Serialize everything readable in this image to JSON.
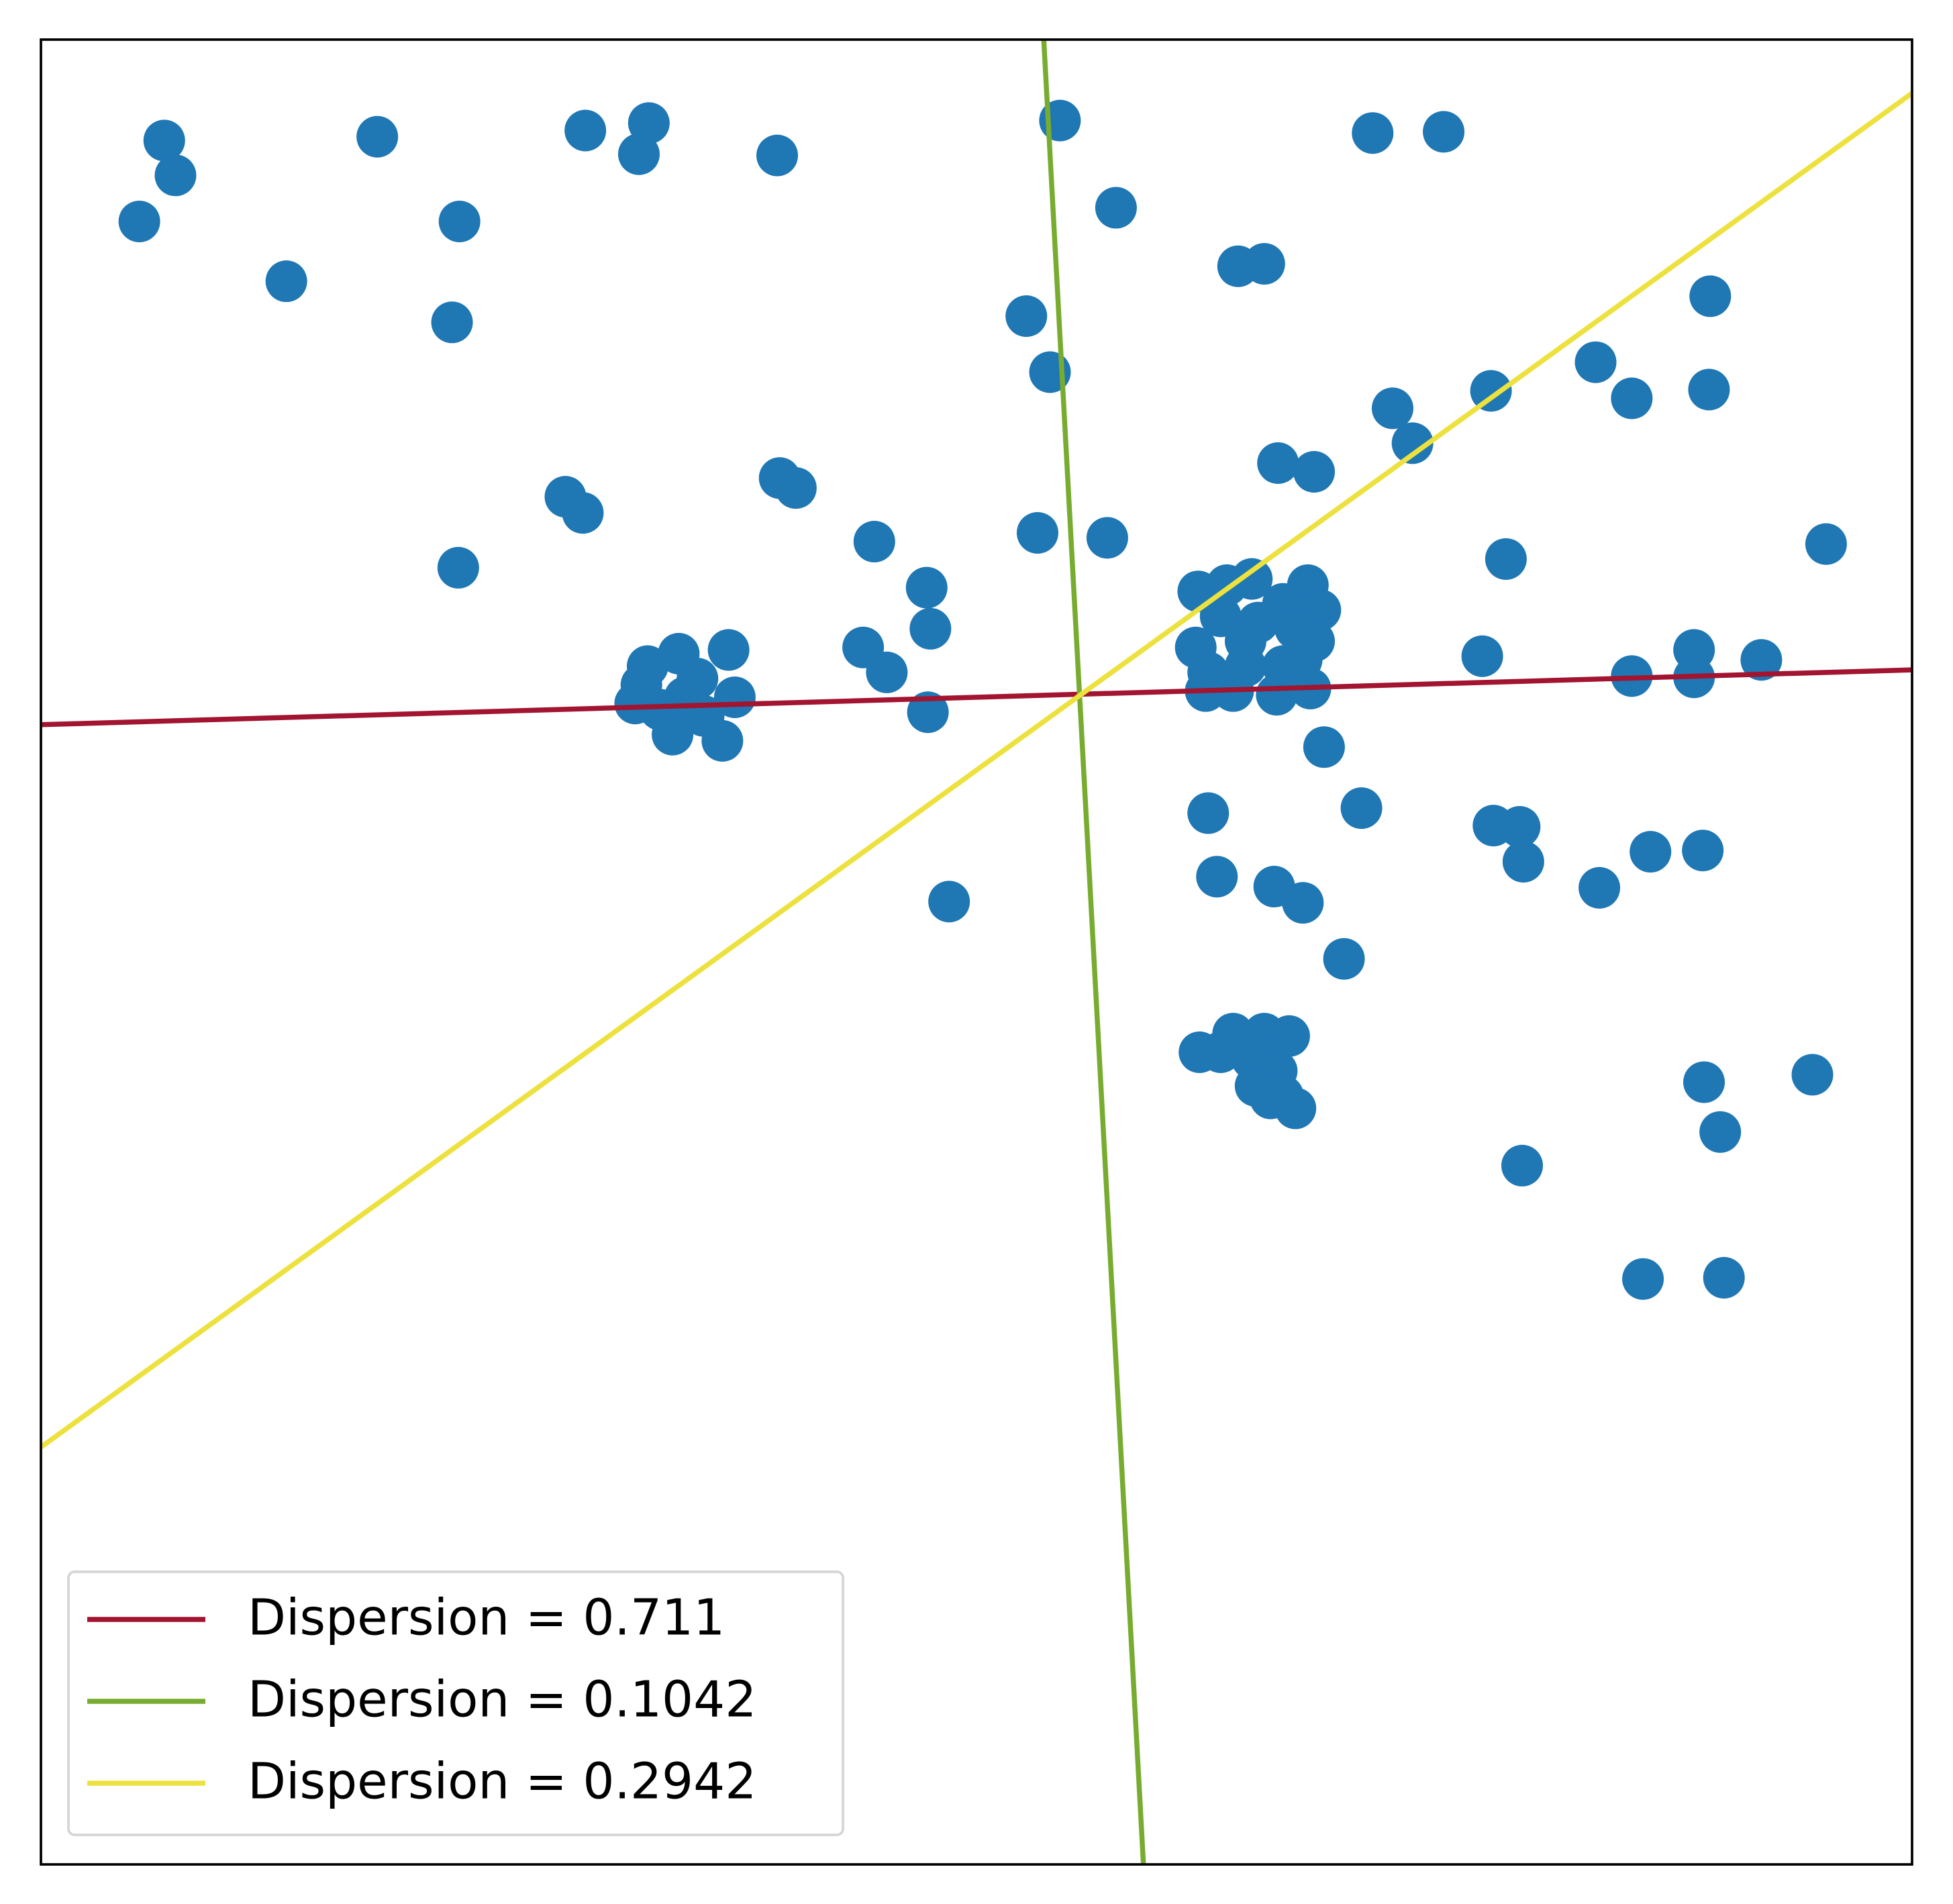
{
  "chart_data": {
    "type": "scatter",
    "xlim": [
      0,
      1502
    ],
    "ylim": [
      0,
      1465
    ],
    "legend": "lower left",
    "series": [
      {
        "type": "scatter",
        "color": "#1f77b4",
        "x": [
          99,
          108,
          79,
          270,
          197,
          336,
          330,
          437,
          488,
          480,
          591,
          818,
          863,
          1069,
          1126,
          961,
          982,
          791,
          810,
          1340,
          1248,
          1277,
          1339,
          1164,
          1085,
          1101,
          993,
          1022,
          593,
          606,
          421,
          435,
          335,
          669,
          800,
          856,
          1433,
          1176,
          711,
          714,
          660,
          679,
          712,
          1157,
          1327,
          1381,
          1277,
          1327,
          1030,
          937,
          1060,
          1166,
          1187,
          1190,
          1292,
          1334,
          1251,
          944,
          990,
          1013,
          729,
          1046,
          1335,
          1422,
          1348,
          1189,
          1286,
          1351,
          487,
          512,
          552,
          482,
          527,
          557,
          497,
          532,
          547,
          507,
          477,
          517,
          929,
          952,
          972,
          1017,
          997,
          1027,
          947,
          977,
          1007,
          927,
          967,
          1022,
          937,
          967,
          997,
          935,
          957,
          992,
          1019,
          1012,
          930,
          957,
          982,
          1002,
          947,
          972,
          992,
          975,
          997,
          1007,
          987
        ],
        "y": [
          1384,
          1356,
          1319,
          1387,
          1271,
          1319,
          1238,
          1392,
          1398,
          1373,
          1372,
          1400,
          1330,
          1390,
          1391,
          1283,
          1285,
          1243,
          1198,
          1259,
          1206,
          1177,
          1184,
          1183,
          1169,
          1141,
          1125,
          1118,
          1113,
          1105,
          1098,
          1085,
          1041,
          1062,
          1069,
          1065,
          1060,
          1048,
          1025,
          992,
          977,
          957,
          925,
          970,
          975,
          967,
          954,
          953,
          897,
          844,
          848,
          834,
          833,
          805,
          813,
          814,
          784,
          793,
          785,
          772,
          773,
          727,
          628,
          634,
          588,
          561,
          470,
          471,
          962,
          972,
          975,
          947,
          952,
          937,
          927,
          922,
          902,
          907,
          932,
          937,
          1022,
          1027,
          1032,
          1027,
          1012,
          1007,
          1002,
          997,
          992,
          977,
          982,
          982,
          957,
          962,
          962,
          942,
          942,
          939,
          944,
          967,
          652,
          667,
          667,
          665,
          652,
          647,
          637,
          625,
          617,
          607,
          615
        ]
      },
      {
        "type": "line",
        "name": "Dispersion = 0.711",
        "color": "#a2142f",
        "x": [
          0,
          1502
        ],
        "y": [
          915,
          959
        ]
      },
      {
        "type": "line",
        "name": "Dispersion = 0.1042",
        "color": "#77ac30",
        "x": [
          805,
          885
        ],
        "y": [
          1465,
          0
        ]
      },
      {
        "type": "line",
        "name": "Dispersion = 0.2942",
        "color": "#ede13e",
        "x": [
          0,
          1502
        ],
        "y": [
          335,
          1422
        ]
      }
    ]
  }
}
